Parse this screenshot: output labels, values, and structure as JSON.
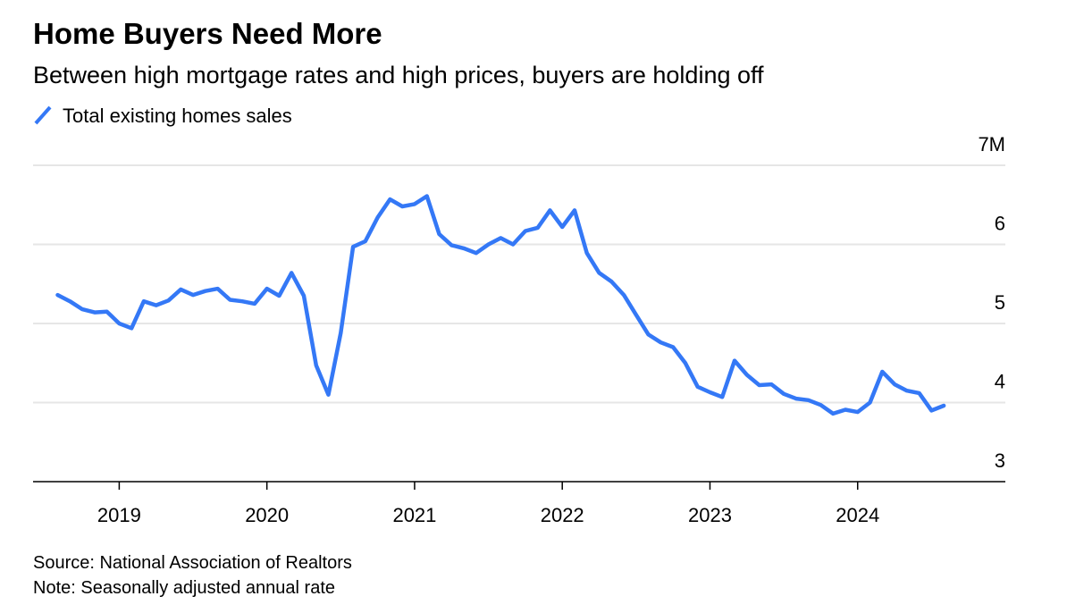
{
  "chart_data": {
    "type": "line",
    "title": "Home Buyers Need More",
    "subtitle": "Between high mortgage rates and high prices, buyers are holding off",
    "source": "Source: National Association of Realtors",
    "note": "Note: Seasonally adjusted annual rate",
    "x": [
      "2018-08",
      "2018-09",
      "2018-10",
      "2018-11",
      "2018-12",
      "2019-01",
      "2019-02",
      "2019-03",
      "2019-04",
      "2019-05",
      "2019-06",
      "2019-07",
      "2019-08",
      "2019-09",
      "2019-10",
      "2019-11",
      "2019-12",
      "2020-01",
      "2020-02",
      "2020-03",
      "2020-04",
      "2020-05",
      "2020-06",
      "2020-07",
      "2020-08",
      "2020-09",
      "2020-10",
      "2020-11",
      "2020-12",
      "2021-01",
      "2021-02",
      "2021-03",
      "2021-04",
      "2021-05",
      "2021-06",
      "2021-07",
      "2021-08",
      "2021-09",
      "2021-10",
      "2021-11",
      "2021-12",
      "2022-01",
      "2022-02",
      "2022-03",
      "2022-04",
      "2022-05",
      "2022-06",
      "2022-07",
      "2022-08",
      "2022-09",
      "2022-10",
      "2022-11",
      "2022-12",
      "2023-01",
      "2023-02",
      "2023-03",
      "2023-04",
      "2023-05",
      "2023-06",
      "2023-07",
      "2023-08",
      "2023-09",
      "2023-10",
      "2023-11",
      "2023-12",
      "2024-01",
      "2024-02",
      "2024-03",
      "2024-04",
      "2024-05",
      "2024-06",
      "2024-07",
      "2024-08"
    ],
    "series": [
      {
        "name": "Total existing homes sales",
        "color": "#3478f6",
        "values": [
          5.36,
          5.28,
          5.18,
          5.14,
          5.15,
          5.0,
          4.94,
          5.28,
          5.23,
          5.29,
          5.43,
          5.36,
          5.41,
          5.44,
          5.3,
          5.28,
          5.25,
          5.44,
          5.35,
          5.64,
          5.35,
          4.47,
          4.1,
          4.88,
          5.97,
          6.04,
          6.34,
          6.57,
          6.48,
          6.51,
          6.61,
          6.13,
          5.99,
          5.95,
          5.89,
          6.0,
          6.08,
          6.0,
          6.17,
          6.21,
          6.43,
          6.22,
          6.43,
          5.89,
          5.64,
          5.53,
          5.36,
          5.11,
          4.86,
          4.76,
          4.7,
          4.5,
          4.2,
          4.13,
          4.07,
          4.53,
          4.35,
          4.22,
          4.23,
          4.11,
          4.05,
          4.03,
          3.97,
          3.86,
          3.91,
          3.88,
          4.0,
          4.39,
          4.23,
          4.15,
          4.12,
          3.9,
          3.96
        ]
      }
    ],
    "xlim": [
      "2018-06",
      "2025-01"
    ],
    "xticks": [
      {
        "value": "2019-01",
        "label": "2019"
      },
      {
        "value": "2020-01",
        "label": "2020"
      },
      {
        "value": "2021-01",
        "label": "2021"
      },
      {
        "value": "2022-01",
        "label": "2022"
      },
      {
        "value": "2023-01",
        "label": "2023"
      },
      {
        "value": "2024-01",
        "label": "2024"
      }
    ],
    "ylim": [
      3,
      7
    ],
    "yticks": [
      3,
      4,
      5,
      6,
      {
        "value": 7,
        "label": "7M"
      }
    ],
    "grid": true
  }
}
